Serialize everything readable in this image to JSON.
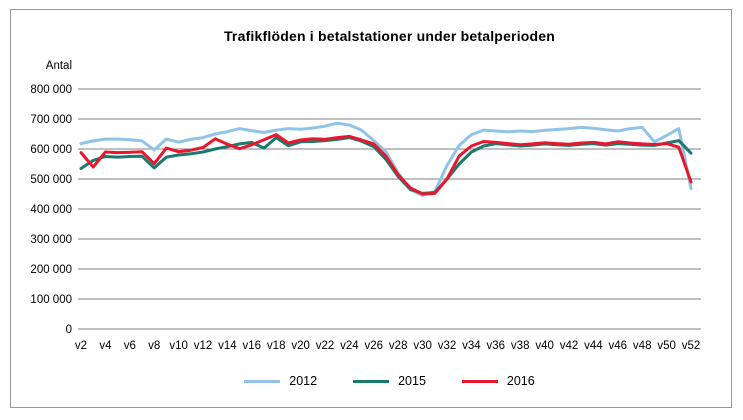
{
  "chart_data": {
    "type": "line",
    "title": "Trafikflöden i betalstationer under betalperioden",
    "xlabel": "",
    "ylabel": "Antal",
    "ylim": [
      0,
      800000
    ],
    "ytick_step": 100000,
    "ytick_labels": [
      "800 000",
      "700 000",
      "600 000",
      "500 000",
      "400 000",
      "300 000",
      "200 000",
      "100 000",
      "0"
    ],
    "grid": "horizontal",
    "gridline_color": "#808080",
    "legend_position": "bottom",
    "x_categories": [
      "v2",
      "v3",
      "v4",
      "v5",
      "v6",
      "v7",
      "v8",
      "v9",
      "v10",
      "v11",
      "v12",
      "v13",
      "v14",
      "v15",
      "v16",
      "v17",
      "v18",
      "v19",
      "v20",
      "v21",
      "v22",
      "v23",
      "v24",
      "v25",
      "v26",
      "v27",
      "v28",
      "v29",
      "v30",
      "v31",
      "v32",
      "v33",
      "v34",
      "v35",
      "v36",
      "v37",
      "v38",
      "v39",
      "v40",
      "v41",
      "v42",
      "v43",
      "v44",
      "v45",
      "v46",
      "v47",
      "v48",
      "v49",
      "v50",
      "v51",
      "v52"
    ],
    "x_tick_labels": [
      "v2",
      "v4",
      "v6",
      "v8",
      "v10",
      "v12",
      "v14",
      "v16",
      "v18",
      "v20",
      "v22",
      "v24",
      "v26",
      "v28",
      "v30",
      "v32",
      "v34",
      "v36",
      "v38",
      "v40",
      "v42",
      "v44",
      "v46",
      "v48",
      "v50",
      "v52"
    ],
    "series": [
      {
        "name": "2012",
        "color": "#8FC3E8",
        "values": [
          618000,
          627000,
          633000,
          633000,
          631000,
          627000,
          597000,
          633000,
          623000,
          632000,
          638000,
          650000,
          658000,
          668000,
          661000,
          655000,
          663000,
          668000,
          666000,
          670000,
          676000,
          686000,
          680000,
          663000,
          628000,
          590000,
          520000,
          465000,
          445000,
          458000,
          545000,
          612000,
          648000,
          663000,
          660000,
          657000,
          660000,
          658000,
          662000,
          665000,
          668000,
          672000,
          669000,
          664000,
          660000,
          668000,
          672000,
          624000,
          645000,
          668000,
          468000
        ]
      },
      {
        "name": "2015",
        "color": "#1B7A6E",
        "values": [
          535000,
          562000,
          575000,
          573000,
          575000,
          576000,
          537000,
          573000,
          580000,
          584000,
          590000,
          600000,
          608000,
          617000,
          622000,
          603000,
          638000,
          611000,
          624000,
          625000,
          628000,
          632000,
          638000,
          626000,
          608000,
          565000,
          508000,
          465000,
          452000,
          455000,
          500000,
          550000,
          590000,
          610000,
          618000,
          614000,
          610000,
          613000,
          617000,
          614000,
          612000,
          616000,
          618000,
          613000,
          618000,
          616000,
          613000,
          612000,
          620000,
          628000,
          586000
        ]
      },
      {
        "name": "2016",
        "color": "#E8172D",
        "values": [
          588000,
          540000,
          590000,
          588000,
          589000,
          591000,
          551000,
          603000,
          591000,
          596000,
          605000,
          634000,
          616000,
          601000,
          614000,
          631000,
          648000,
          620000,
          630000,
          634000,
          632000,
          638000,
          642000,
          630000,
          617000,
          576000,
          514000,
          470000,
          450000,
          452000,
          500000,
          577000,
          610000,
          625000,
          622000,
          618000,
          614000,
          617000,
          621000,
          618000,
          616000,
          620000,
          622000,
          617000,
          624000,
          620000,
          617000,
          615000,
          618000,
          606000,
          490000
        ]
      }
    ]
  }
}
